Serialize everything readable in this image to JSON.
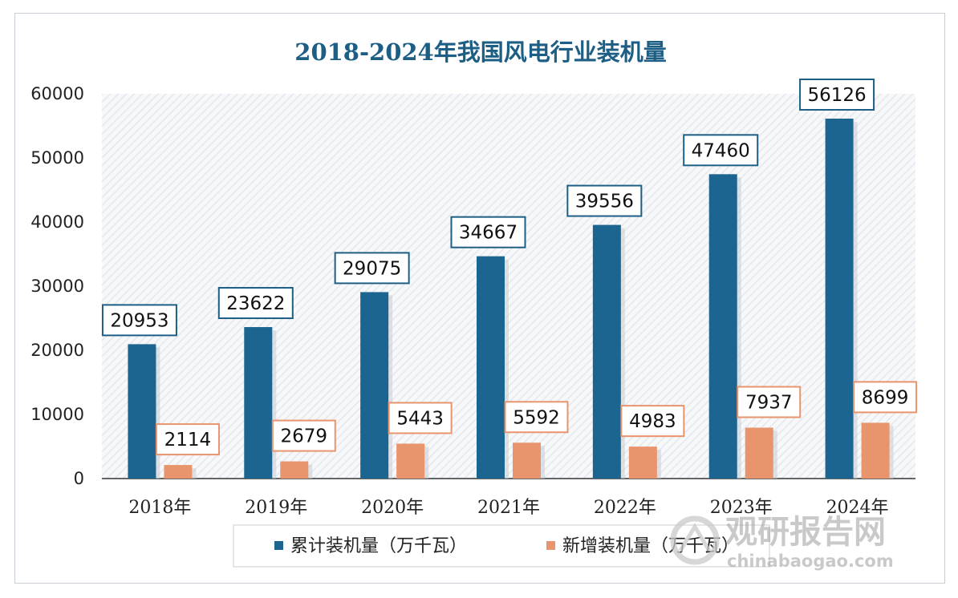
{
  "chart_data": {
    "type": "bar",
    "title": "2018-2024年我国风电行业装机量",
    "categories": [
      "2018年",
      "2019年",
      "2020年",
      "2021年",
      "2022年",
      "2023年",
      "2024年"
    ],
    "series": [
      {
        "name": "累计装机量（万千瓦）",
        "color": "#1d6591",
        "label_border": "#1d5e85",
        "values": [
          20953,
          23622,
          29075,
          34667,
          39556,
          47460,
          56126
        ]
      },
      {
        "name": "新增装机量（万千瓦）",
        "color": "#e8946d",
        "label_border": "#e8946d",
        "values": [
          2114,
          2679,
          5443,
          5592,
          4983,
          7937,
          8699
        ]
      }
    ],
    "ylim": [
      0,
      60000
    ],
    "yticks": [
      0,
      10000,
      20000,
      30000,
      40000,
      50000,
      60000
    ],
    "xlabel": "",
    "ylabel": "",
    "grid": false,
    "legend_position": "bottom"
  },
  "watermark": {
    "text": "观研报告网",
    "url": "chinabaogao.com"
  }
}
